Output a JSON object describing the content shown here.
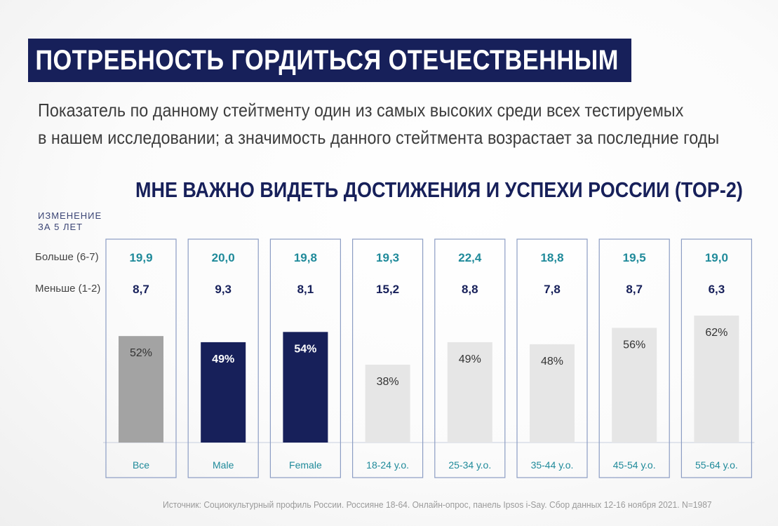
{
  "header": {
    "title": "ПОТРЕБНОСТЬ ГОРДИТЬСЯ ОТЕЧЕСТВЕННЫМ",
    "subtitle_lines": [
      "Показатель по данному стейтменту один из самых высоких среди всех тестируемых",
      "в нашем исследовании; а значимость данного стейтмента возрастает за последние годы"
    ]
  },
  "labels": {
    "change_line1": "ИЗМЕНЕНИЕ",
    "change_line2": "ЗА 5 ЛЕТ",
    "more": "Больше (6-7)",
    "less": "Меньше (1-2)"
  },
  "source": "Источник: Социокультурный профиль России. Россияне 18-64. Онлайн-опрос, панель Ipsos i-Say. Сбор данных 12-16 ноября 2021. N=1987",
  "colors": {
    "navy": "#17205a",
    "teal": "#1f8a9a",
    "gray_bar": "#a3a3a3",
    "light_bar": "#e6e6e6",
    "panel_border": "#8c9dc4"
  },
  "chart_data": {
    "type": "bar",
    "title": "МНЕ ВАЖНО ВИДЕТЬ ДОСТИЖЕНИЯ И УСПЕХИ РОССИИ (TOP-2)",
    "categories": [
      "Все",
      "Male",
      "Female",
      "18-24 у.о.",
      "25-34 у.о.",
      "35-44 у.о.",
      "45-54 у.о.",
      "55-64 у.о."
    ],
    "values": [
      52,
      49,
      54,
      38,
      49,
      48,
      56,
      62
    ],
    "value_labels": [
      "52%",
      "49%",
      "54%",
      "38%",
      "49%",
      "48%",
      "56%",
      "62%"
    ],
    "bar_styles": [
      "gray",
      "navy",
      "navy",
      "light",
      "light",
      "light",
      "light",
      "light"
    ],
    "more_values": [
      "19,9",
      "20,0",
      "19,8",
      "19,3",
      "22,4",
      "18,8",
      "19,5",
      "19,0"
    ],
    "less_values": [
      "8,7",
      "9,3",
      "8,1",
      "15,2",
      "8,8",
      "7,8",
      "8,7",
      "6,3"
    ],
    "ylim": [
      0,
      100
    ],
    "xlabel": "",
    "ylabel": ""
  }
}
